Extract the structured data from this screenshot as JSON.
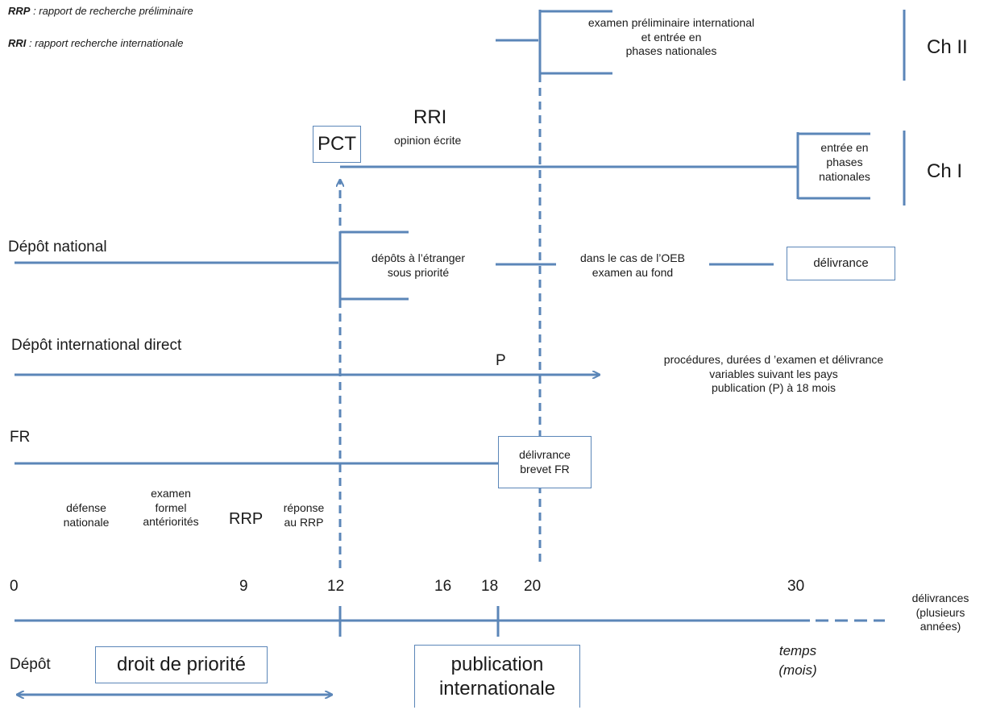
{
  "legend": {
    "rrp_abbr": "RRP",
    "rrp_text": " : rapport de recherche préliminaire",
    "rri_abbr": "RRI",
    "rri_text": " : rapport recherche internationale"
  },
  "labels": {
    "ch2": "Ch II",
    "ch1": "Ch I",
    "ch2_text": [
      "examen préliminaire international",
      "et entrée en",
      "phases nationales"
    ],
    "ch1_box": [
      "entrée en",
      "phases",
      "nationales"
    ],
    "pct": "PCT",
    "rri": "RRI",
    "rri_sub": "opinion écrite",
    "depot_national": "Dépôt national",
    "etranger": [
      "dépôts à l’étranger",
      "sous priorité"
    ],
    "oeb": [
      "dans le cas de l’OEB",
      "examen au fond"
    ],
    "delivrance": "délivrance",
    "depot_intl": "Dépôt international direct",
    "p": "P",
    "procedures": [
      "procédures, durées d ’examen et délivrance",
      "variables suivant les pays",
      "publication (P) à 18 mois"
    ],
    "fr": "FR",
    "brevet_fr": [
      "délivrance",
      "brevet FR"
    ],
    "defense": [
      "défense",
      "nationale"
    ],
    "examen_formel": [
      "examen",
      "formel",
      "antériorités"
    ],
    "rrp": "RRP",
    "reponse": [
      "réponse",
      "au RRP"
    ],
    "delivrances": [
      "délivrances",
      "(plusieurs",
      "années)"
    ],
    "temps": [
      "temps",
      "(mois)"
    ],
    "depot": "Dépôt",
    "droit": "droit de priorité",
    "publication": [
      "publication",
      "internationale"
    ]
  },
  "timeline": {
    "ticks": [
      "0",
      "9",
      "12",
      "16",
      "18",
      "20",
      "30"
    ]
  },
  "colors": {
    "line": "#5b86b8",
    "text": "#1a1a1a"
  }
}
